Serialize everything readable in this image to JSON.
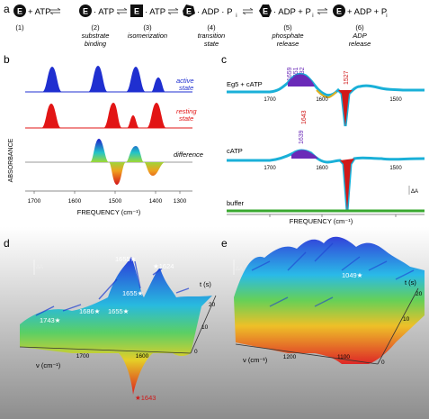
{
  "panel_letters": {
    "a": "a",
    "b": "b",
    "c": "c",
    "d": "d",
    "e": "e"
  },
  "scheme": {
    "eg5": "E",
    "row": [
      "+ ATP",
      "· ATP",
      "· ATP",
      "· ADP · P",
      "· ADP + P",
      "+ ADP + P"
    ],
    "sub": "i",
    "steps": [
      {
        "num": "(1)",
        "desc": []
      },
      {
        "num": "(2)",
        "desc": [
          "substrate",
          "binding"
        ]
      },
      {
        "num": "(3)",
        "desc": [
          "isomerization"
        ]
      },
      {
        "num": "(4)",
        "desc": [
          "transition",
          "state"
        ]
      },
      {
        "num": "(5)",
        "desc": [
          "phosphate",
          "release"
        ]
      },
      {
        "num": "(6)",
        "desc": [
          "ADP",
          "release"
        ]
      }
    ]
  },
  "panel_b": {
    "ylabel": "ABSORBANCE",
    "xlabel": "FREQUENCY (cm⁻¹)",
    "labels": [
      "active",
      "state",
      "resting",
      "state",
      "difference"
    ],
    "ticks": [
      "1700",
      "1600",
      "1500",
      "1400",
      "1300"
    ],
    "colors": {
      "active": "#1f2fd0",
      "resting": "#e21515"
    }
  },
  "panel_c": {
    "traces": [
      "Eg5 + cATP",
      "cATP",
      "buffer"
    ],
    "xlabel": "FREQUENCY (cm⁻¹)",
    "ticks": [
      "1700",
      "1600",
      "1500"
    ],
    "delta": "ΔA",
    "peaks_purple": [
      "1659",
      "1651",
      "1632"
    ],
    "peak_red": "1527",
    "peak_1643": "1643",
    "peak_1639": "1639"
  },
  "panel_d": {
    "xlabel": "ν (cm⁻¹)",
    "tlabel": "t (s)",
    "ticks": [
      "1700",
      "1600"
    ],
    "tticks": [
      "20",
      "10",
      "0"
    ],
    "delta": "ΔA",
    "peaks": [
      "1655",
      "1624",
      "1655",
      "1686",
      "1655",
      "1743",
      "1643"
    ]
  },
  "panel_e": {
    "xlabel": "ν (cm⁻¹)",
    "tlabel": "t (s)",
    "ticks": [
      "1200",
      "1100"
    ],
    "tticks": [
      "20",
      "10",
      "0"
    ],
    "delta": "ΔA",
    "peak": "1049"
  }
}
